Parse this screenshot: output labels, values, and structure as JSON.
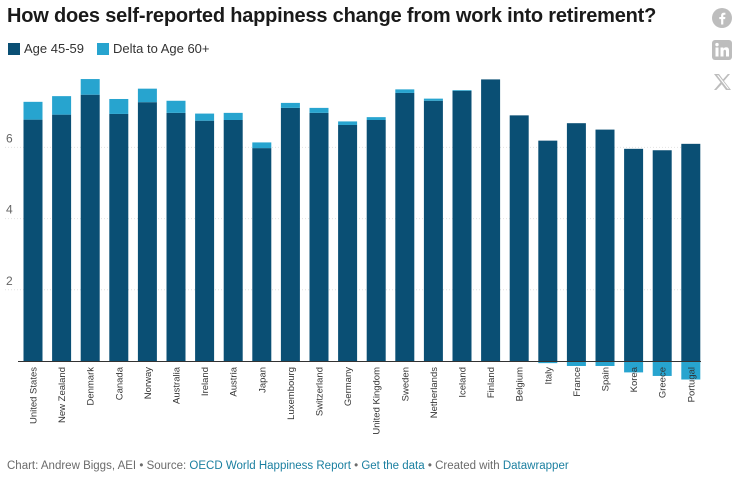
{
  "title": "How does self-reported happiness change from work into retirement?",
  "share_icons": [
    {
      "name": "facebook-icon"
    },
    {
      "name": "linkedin-icon"
    },
    {
      "name": "x-icon"
    }
  ],
  "legend": [
    {
      "label": "Age 45-59",
      "color": "#0a4f74"
    },
    {
      "label": "Delta to Age 60+",
      "color": "#27a4cf"
    }
  ],
  "chart_data": {
    "type": "bar",
    "stacked": true,
    "title": "How does self-reported happiness change from work into retirement?",
    "categories": [
      "United States",
      "New Zealand",
      "Denmark",
      "Canada",
      "Norway",
      "Australia",
      "Ireland",
      "Austria",
      "Japan",
      "Luxembourg",
      "Switzerland",
      "Germany",
      "United Kingdom",
      "Sweden",
      "Netherlands",
      "Iceland",
      "Finland",
      "Belgium",
      "Italy",
      "France",
      "Spain",
      "Korea",
      "Greece",
      "Portugal"
    ],
    "series": [
      {
        "name": "Age 45-59",
        "values": [
          6.78,
          6.92,
          7.48,
          6.94,
          7.27,
          6.97,
          6.75,
          6.77,
          5.98,
          7.11,
          6.97,
          6.63,
          6.77,
          7.53,
          7.31,
          7.59,
          7.91,
          6.9,
          6.19,
          6.68,
          6.5,
          5.96,
          5.92,
          6.1
        ]
      },
      {
        "name": "Delta to Age 60+",
        "values": [
          0.5,
          0.52,
          0.44,
          0.42,
          0.38,
          0.34,
          0.2,
          0.2,
          0.16,
          0.14,
          0.14,
          0.1,
          0.08,
          0.1,
          0.06,
          0.02,
          0.0,
          0.0,
          -0.06,
          -0.14,
          -0.14,
          -0.32,
          -0.42,
          -0.52
        ]
      }
    ],
    "y_ticks": [
      2,
      4,
      6
    ],
    "ylim": [
      0,
      8
    ],
    "xlabel": "",
    "ylabel": "",
    "grid": true
  },
  "footer": {
    "credit": "Chart: Andrew Biggs, AEI",
    "source_label": "Source:",
    "source_link": "OECD World Happiness Report",
    "data_link": "Get the data",
    "created_label": "Created with",
    "tool_link": "Datawrapper",
    "separator": "•"
  }
}
